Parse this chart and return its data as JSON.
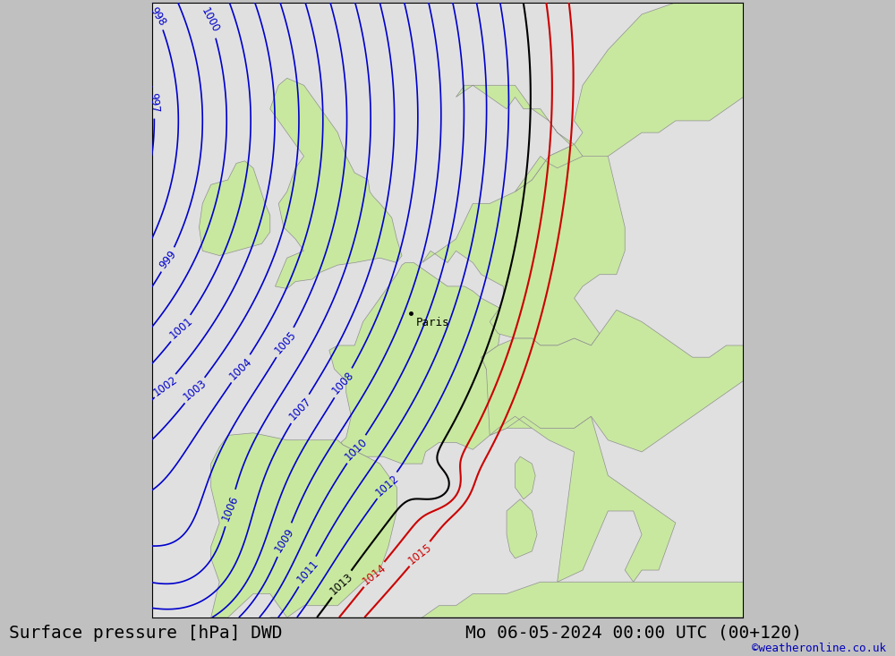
{
  "title_left": "Surface pressure [hPa] DWD",
  "title_right": "Mo 06-05-2024 00:00 UTC (00+120)",
  "credit": "©weatheronline.co.uk",
  "land_color": "#c8e8a0",
  "sea_color": "#e0e0e0",
  "fig_color": "#c0c0c0",
  "blue_color": "#0000cc",
  "black_color": "#000000",
  "red_color": "#cc0000",
  "paris_lon": 2.35,
  "paris_lat": 48.85
}
